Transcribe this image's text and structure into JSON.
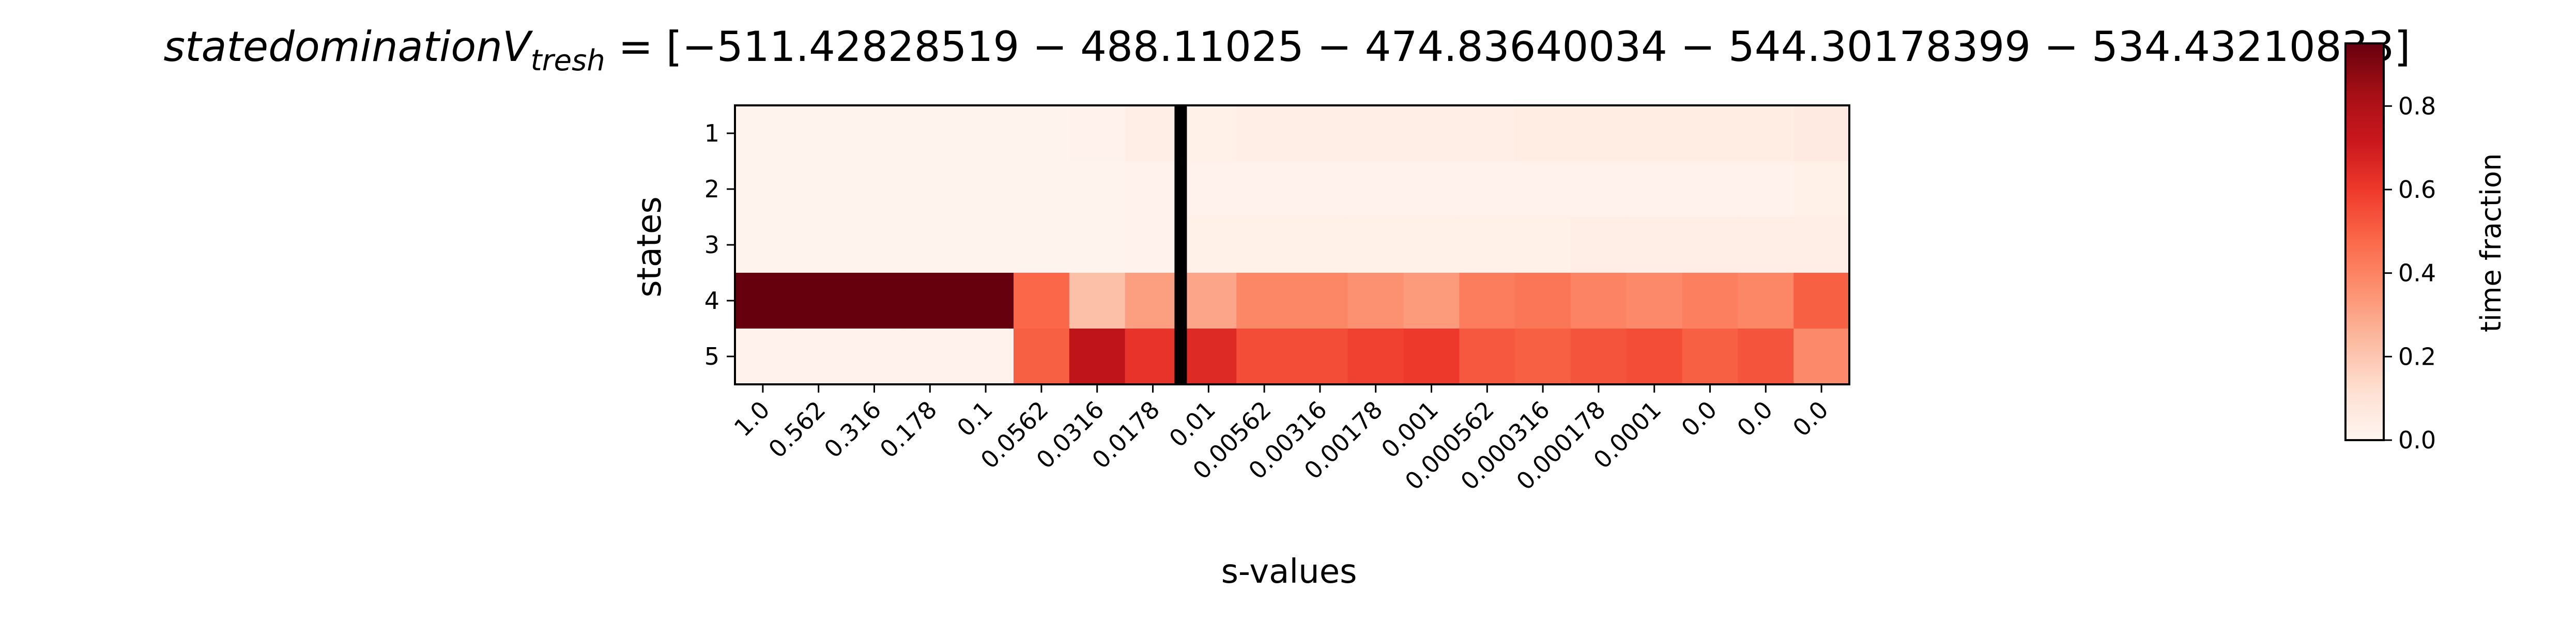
{
  "chart_data": {
    "type": "heatmap",
    "title": "statedominationV_tresh = [−511.42828519 − 488.11025 − 474.83640034 − 544.30178399 − 534.43210833]",
    "title_parts": {
      "main": "statedomination",
      "var": "V",
      "sub": "tresh",
      "rest": " = [−511.42828519 − 488.11025 − 474.83640034 − 544.30178399 − 534.43210833]"
    },
    "xlabel": "s-values",
    "ylabel": "states",
    "x_ticks": [
      "1.0",
      "0.562",
      "0.316",
      "0.178",
      "0.1",
      "0.0562",
      "0.0316",
      "0.0178",
      "0.01",
      "0.00562",
      "0.00316",
      "0.00178",
      "0.001",
      "0.000562",
      "0.000316",
      "0.000178",
      "0.0001",
      "0.0",
      "0.0",
      "0.0"
    ],
    "y_ticks": [
      "1",
      "2",
      "3",
      "4",
      "5"
    ],
    "colorbar": {
      "label": "time fraction",
      "ticks": [
        "0.0",
        "0.2",
        "0.4",
        "0.6",
        "0.8"
      ],
      "range": [
        0,
        0.95
      ],
      "colormap": "Reds"
    },
    "vertical_marker_between_columns": [
      7,
      8
    ],
    "values": [
      [
        0.01,
        0.01,
        0.01,
        0.01,
        0.01,
        0.01,
        0.02,
        0.04,
        0.03,
        0.04,
        0.04,
        0.04,
        0.04,
        0.04,
        0.05,
        0.05,
        0.05,
        0.05,
        0.05,
        0.06
      ],
      [
        0.01,
        0.01,
        0.01,
        0.01,
        0.01,
        0.01,
        0.01,
        0.02,
        0.02,
        0.02,
        0.02,
        0.02,
        0.02,
        0.02,
        0.02,
        0.02,
        0.02,
        0.02,
        0.02,
        0.03
      ],
      [
        0.01,
        0.01,
        0.01,
        0.01,
        0.01,
        0.01,
        0.01,
        0.02,
        0.03,
        0.03,
        0.03,
        0.03,
        0.03,
        0.03,
        0.03,
        0.04,
        0.04,
        0.04,
        0.04,
        0.04
      ],
      [
        0.95,
        0.95,
        0.95,
        0.95,
        0.95,
        0.48,
        0.22,
        0.32,
        0.3,
        0.39,
        0.39,
        0.36,
        0.33,
        0.42,
        0.44,
        0.4,
        0.38,
        0.41,
        0.39,
        0.5
      ],
      [
        0.02,
        0.02,
        0.02,
        0.02,
        0.02,
        0.5,
        0.75,
        0.62,
        0.65,
        0.55,
        0.55,
        0.58,
        0.6,
        0.52,
        0.5,
        0.53,
        0.55,
        0.5,
        0.53,
        0.38
      ]
    ]
  }
}
